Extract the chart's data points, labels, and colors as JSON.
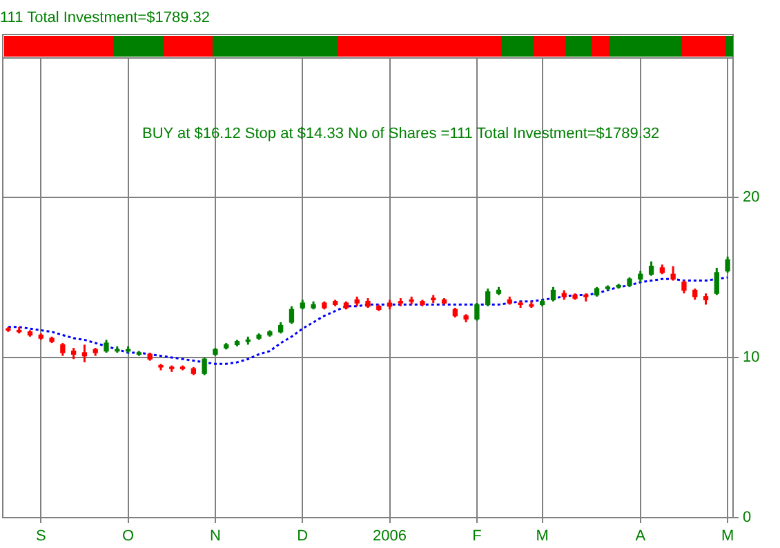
{
  "chart_data": {
    "type": "candlestick",
    "annotations": [
      "111 Total Investment=$1789.32",
      "BUY at $16.12 Stop at $14.33 No of Shares =111 Total Investment=$1789.32"
    ],
    "categories": [
      null,
      null,
      null,
      "S",
      null,
      null,
      null,
      null,
      null,
      null,
      null,
      "O",
      null,
      null,
      null,
      null,
      null,
      null,
      null,
      "N",
      null,
      null,
      null,
      null,
      null,
      null,
      null,
      "D",
      null,
      null,
      null,
      null,
      null,
      null,
      null,
      "2006",
      null,
      null,
      null,
      null,
      null,
      null,
      null,
      "F",
      null,
      null,
      null,
      null,
      null,
      "M",
      null,
      null,
      null,
      null,
      null,
      null,
      null,
      null,
      "A",
      null,
      null,
      null,
      null,
      null,
      null,
      null,
      "M"
    ],
    "series": [
      {
        "ohlc": [
          [
            11.8,
            11.9,
            11.6,
            11.7
          ],
          [
            11.7,
            11.9,
            11.5,
            11.6
          ],
          [
            11.6,
            11.7,
            11.3,
            11.4
          ],
          [
            11.4,
            11.5,
            11.1,
            11.2
          ],
          [
            11.2,
            11.3,
            10.9,
            11.0
          ],
          [
            10.8,
            10.9,
            10.1,
            10.3
          ],
          [
            10.4,
            10.6,
            9.9,
            10.2
          ],
          [
            10.3,
            10.8,
            9.7,
            10.1
          ],
          [
            10.5,
            10.6,
            10.1,
            10.3
          ],
          [
            10.4,
            11.1,
            10.3,
            10.9
          ],
          [
            10.4,
            10.7,
            10.3,
            10.5
          ],
          [
            10.4,
            10.7,
            10.3,
            10.5
          ],
          [
            10.2,
            10.4,
            10.1,
            10.3
          ],
          [
            10.2,
            10.3,
            9.8,
            9.9
          ],
          [
            9.5,
            9.6,
            9.2,
            9.4
          ],
          [
            9.4,
            9.5,
            9.1,
            9.3
          ],
          [
            9.4,
            9.5,
            9.2,
            9.3
          ],
          [
            9.3,
            9.4,
            8.9,
            9.0
          ],
          [
            9.0,
            10.0,
            8.9,
            9.9
          ],
          [
            10.2,
            10.6,
            10.1,
            10.5
          ],
          [
            10.6,
            10.9,
            10.5,
            10.8
          ],
          [
            10.8,
            11.1,
            10.7,
            11.0
          ],
          [
            11.0,
            11.3,
            10.8,
            11.1
          ],
          [
            11.2,
            11.5,
            11.1,
            11.4
          ],
          [
            11.4,
            11.7,
            11.3,
            11.6
          ],
          [
            11.6,
            12.2,
            11.5,
            12.0
          ],
          [
            12.2,
            13.2,
            12.1,
            13.0
          ],
          [
            13.1,
            13.6,
            13.0,
            13.4
          ],
          [
            13.1,
            13.5,
            13.0,
            13.3
          ],
          [
            13.4,
            13.5,
            13.0,
            13.1
          ],
          [
            13.5,
            13.6,
            13.2,
            13.3
          ],
          [
            13.4,
            13.5,
            13.0,
            13.1
          ],
          [
            13.6,
            13.8,
            13.2,
            13.4
          ],
          [
            13.5,
            13.7,
            13.1,
            13.2
          ],
          [
            13.2,
            13.3,
            12.9,
            13.0
          ],
          [
            13.4,
            13.6,
            13.0,
            13.2
          ],
          [
            13.5,
            13.7,
            13.2,
            13.4
          ],
          [
            13.6,
            13.8,
            13.3,
            13.5
          ],
          [
            13.5,
            13.6,
            13.2,
            13.3
          ],
          [
            13.7,
            13.9,
            13.4,
            13.6
          ],
          [
            13.6,
            13.7,
            13.3,
            13.4
          ],
          [
            13.0,
            13.1,
            12.5,
            12.6
          ],
          [
            12.6,
            12.7,
            12.2,
            12.4
          ],
          [
            12.4,
            13.4,
            12.3,
            13.3
          ],
          [
            13.3,
            14.3,
            13.2,
            14.1
          ],
          [
            14.0,
            14.4,
            13.9,
            14.2
          ],
          [
            13.6,
            13.8,
            13.3,
            13.4
          ],
          [
            13.4,
            13.5,
            13.1,
            13.3
          ],
          [
            13.3,
            13.5,
            13.1,
            13.2
          ],
          [
            13.3,
            13.6,
            13.2,
            13.5
          ],
          [
            13.6,
            14.4,
            13.5,
            14.2
          ],
          [
            14.0,
            14.2,
            13.6,
            13.8
          ],
          [
            13.9,
            14.0,
            13.6,
            13.7
          ],
          [
            13.9,
            14.0,
            13.5,
            13.8
          ],
          [
            13.9,
            14.4,
            13.8,
            14.3
          ],
          [
            14.3,
            14.5,
            14.2,
            14.4
          ],
          [
            14.4,
            14.6,
            14.3,
            14.5
          ],
          [
            14.5,
            15.0,
            14.4,
            14.9
          ],
          [
            14.9,
            15.4,
            14.7,
            15.2
          ],
          [
            15.2,
            16.0,
            15.1,
            15.7
          ],
          [
            15.6,
            15.8,
            15.2,
            15.3
          ],
          [
            15.2,
            15.7,
            14.8,
            14.9
          ],
          [
            14.7,
            14.8,
            14.0,
            14.2
          ],
          [
            14.2,
            14.3,
            13.6,
            13.8
          ],
          [
            13.8,
            14.0,
            13.3,
            13.6
          ],
          [
            14.0,
            15.6,
            13.9,
            15.3
          ],
          [
            15.4,
            16.3,
            15.3,
            16.1
          ]
        ],
        "colors": [
          "#ff0000",
          "#ff0000",
          "#ff0000",
          "#ff0000",
          "#ff0000",
          "#ff0000",
          "#ff0000",
          "#ff0000",
          "#ff0000",
          "#008000",
          "#008000",
          "#008000",
          "#008000",
          "#ff0000",
          "#ff0000",
          "#ff0000",
          "#ff0000",
          "#ff0000",
          "#008000",
          "#008000",
          "#008000",
          "#008000",
          "#008000",
          "#008000",
          "#008000",
          "#008000",
          "#008000",
          "#008000",
          "#008000",
          "#ff0000",
          "#ff0000",
          "#ff0000",
          "#ff0000",
          "#ff0000",
          "#ff0000",
          "#ff0000",
          "#ff0000",
          "#ff0000",
          "#ff0000",
          "#ff0000",
          "#ff0000",
          "#ff0000",
          "#ff0000",
          "#008000",
          "#008000",
          "#008000",
          "#ff0000",
          "#ff0000",
          "#ff0000",
          "#008000",
          "#008000",
          "#ff0000",
          "#ff0000",
          "#ff0000",
          "#008000",
          "#008000",
          "#008000",
          "#008000",
          "#008000",
          "#008000",
          "#ff0000",
          "#ff0000",
          "#ff0000",
          "#ff0000",
          "#ff0000",
          "#008000",
          "#008000"
        ]
      },
      {
        "type": "line",
        "color": "#0000ff",
        "line_style": "dotted",
        "marker": "none",
        "values": [
          11.9,
          11.9,
          11.8,
          11.7,
          11.6,
          11.4,
          11.2,
          11.1,
          10.9,
          10.7,
          10.5,
          10.3,
          10.3,
          10.2,
          10.1,
          10.0,
          9.9,
          9.8,
          9.7,
          9.6,
          9.6,
          9.7,
          9.9,
          10.2,
          10.4,
          10.9,
          11.3,
          11.8,
          12.2,
          12.6,
          12.9,
          13.2,
          13.2,
          13.3,
          13.3,
          13.3,
          13.3,
          13.3,
          13.3,
          13.3,
          13.3,
          13.3,
          13.3,
          13.3,
          13.3,
          13.3,
          13.4,
          13.5,
          13.5,
          13.6,
          13.7,
          13.8,
          13.9,
          13.9,
          14.0,
          14.2,
          14.4,
          14.5,
          14.7,
          14.8,
          14.9,
          14.9,
          14.8,
          14.8,
          14.8,
          14.9,
          15.0
        ]
      }
    ],
    "ylim": [
      0,
      28.7
    ],
    "yticks": [
      0,
      10,
      20
    ],
    "grid": true
  }
}
